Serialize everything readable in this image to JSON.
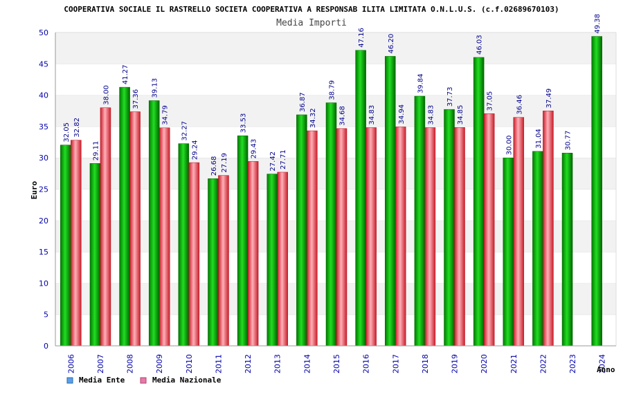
{
  "chart_data": {
    "type": "bar",
    "title": "COOPERATIVA SOCIALE IL RASTRELLO SOCIETA COOPERATIVA A RESPONSAB ILITA LIMITATA O.N.L.U.S. (c.f.02689670103)",
    "subtitle": "Media Importi",
    "ylabel": "Euro",
    "xlabel": "Anno",
    "ylim": [
      0,
      50
    ],
    "yticks": [
      0,
      5,
      10,
      15,
      20,
      25,
      30,
      35,
      40,
      45,
      50
    ],
    "grid": "horizontal bands",
    "legend_position": "bottom-left",
    "categories": [
      "2006",
      "2007",
      "2008",
      "2009",
      "2010",
      "2011",
      "2012",
      "2013",
      "2014",
      "2015",
      "2016",
      "2017",
      "2018",
      "2019",
      "2020",
      "2021",
      "2022",
      "2023",
      "2024"
    ],
    "series": [
      {
        "name": "Media Ente",
        "color": "#00aa00",
        "legend_color": "#5aa0e8",
        "values": [
          32.05,
          29.11,
          41.27,
          39.13,
          32.27,
          26.68,
          33.53,
          27.42,
          36.87,
          38.79,
          47.16,
          46.2,
          39.84,
          37.73,
          46.03,
          30.0,
          31.04,
          30.77,
          49.38
        ],
        "labels": [
          "32.05",
          "29.11",
          "41.27",
          "39.13",
          "32.27",
          "26.68",
          "33.53",
          "27.42",
          "36.87",
          "38.79",
          "47.16",
          "46.20",
          "39.84",
          "37.73",
          "46.03",
          "30.00",
          "31.04",
          "30.77",
          "49.38"
        ]
      },
      {
        "name": "Media Nazionale",
        "color": "#e8404a",
        "legend_color": "#e87aa8",
        "values": [
          32.82,
          38.0,
          37.36,
          34.79,
          29.24,
          27.19,
          29.43,
          27.71,
          34.32,
          34.68,
          34.83,
          34.94,
          34.83,
          34.85,
          37.05,
          36.46,
          37.49,
          null,
          null
        ],
        "labels": [
          "32.82",
          "38.00",
          "37.36",
          "34.79",
          "29.24",
          "27.19",
          "29.43",
          "27.71",
          "34.32",
          "34.68",
          "34.83",
          "34.94",
          "34.83",
          "34.85",
          "37.05",
          "36.46",
          "37.49",
          null,
          null
        ]
      }
    ]
  }
}
